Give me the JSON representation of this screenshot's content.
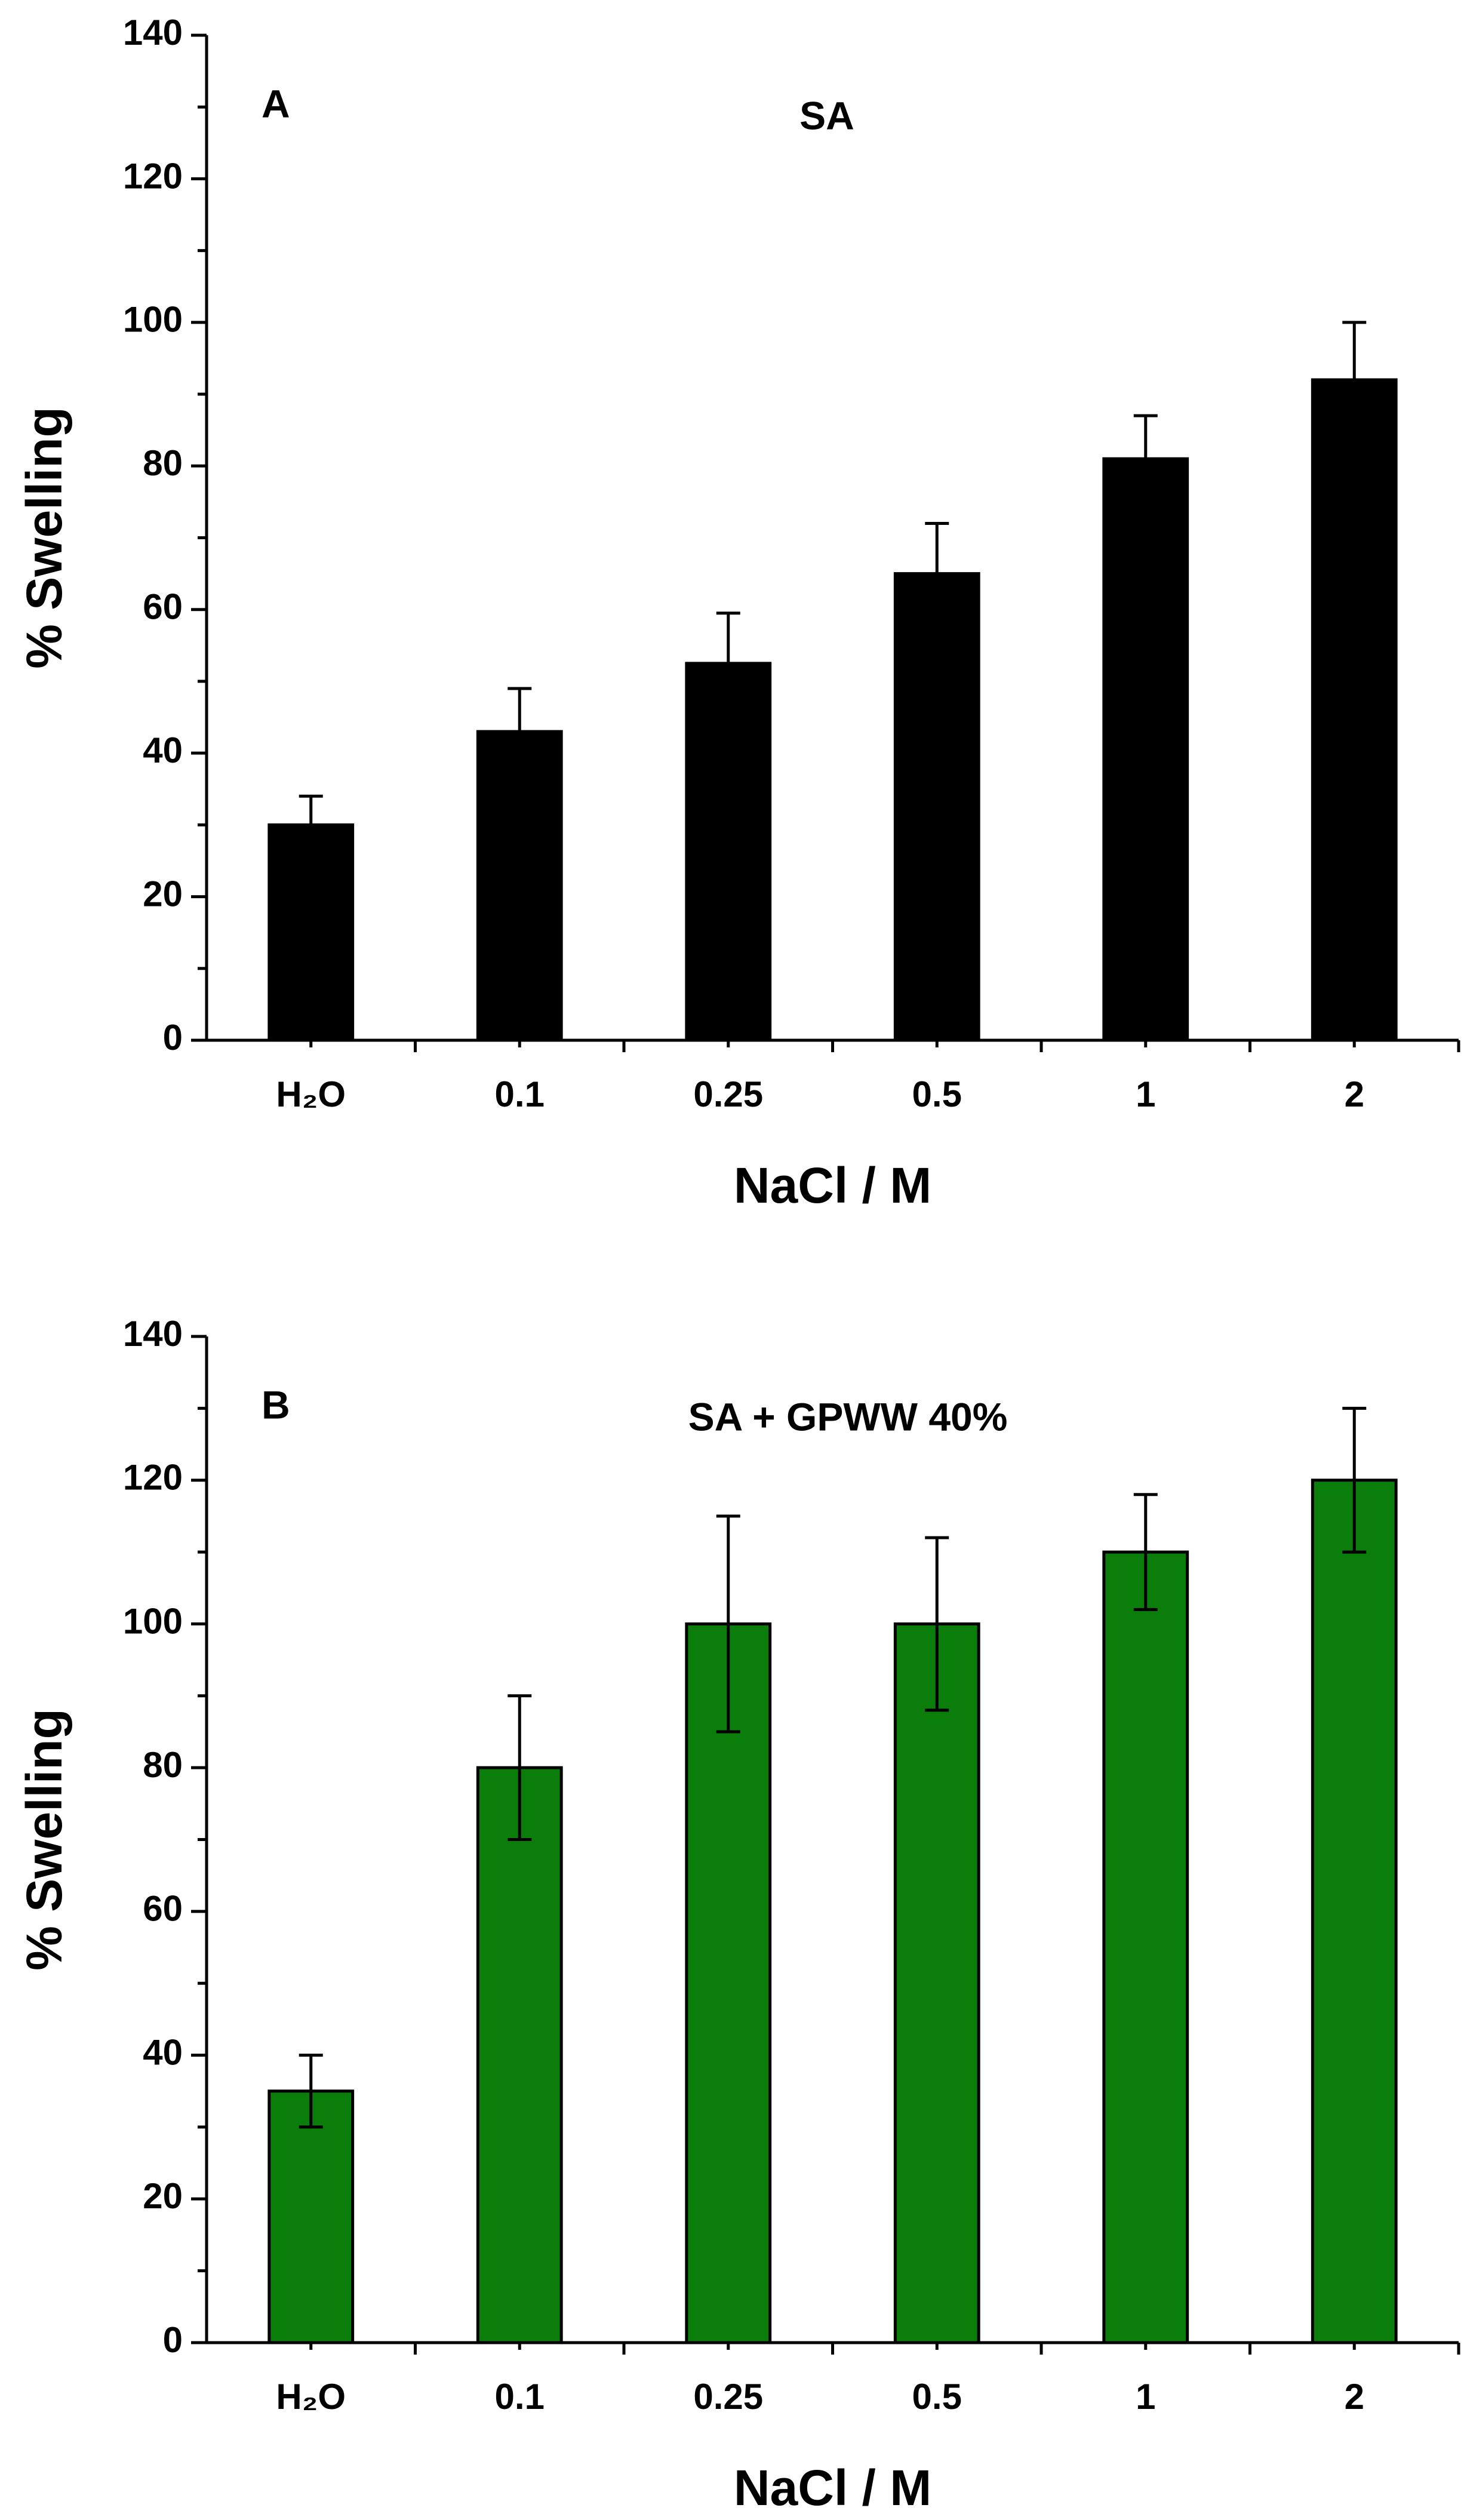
{
  "chart_data": [
    {
      "type": "bar",
      "panel": "A",
      "annotation": "SA",
      "categories": [
        "H₂O",
        "0.1",
        "0.25",
        "0.5",
        "1",
        "2"
      ],
      "values": [
        30,
        43,
        52.5,
        65,
        81,
        92
      ],
      "errors": [
        4,
        6,
        7,
        7,
        6,
        8
      ],
      "error_style": "upper",
      "color": "#000000",
      "xlabel": "NaCl / M",
      "ylabel": "% Swelling",
      "ylim": [
        0,
        140
      ],
      "yticks": [
        0,
        20,
        40,
        60,
        80,
        100,
        120,
        140
      ],
      "yminorticks": [
        10,
        30,
        50,
        70,
        90,
        110,
        130
      ]
    },
    {
      "type": "bar",
      "panel": "B",
      "annotation": "SA + GPWW 40%",
      "categories": [
        "H₂O",
        "0.1",
        "0.25",
        "0.5",
        "1",
        "2"
      ],
      "values": [
        35,
        80,
        100,
        100,
        110,
        120
      ],
      "errors": [
        5,
        10,
        15,
        12,
        8,
        10
      ],
      "error_style": "both",
      "color": "#0a7d0a",
      "xlabel": "NaCl / M",
      "ylabel": "% Swelling",
      "ylim": [
        0,
        140
      ],
      "yticks": [
        0,
        20,
        40,
        60,
        80,
        100,
        120,
        140
      ],
      "yminorticks": [
        10,
        30,
        50,
        70,
        90,
        110,
        130
      ]
    }
  ]
}
